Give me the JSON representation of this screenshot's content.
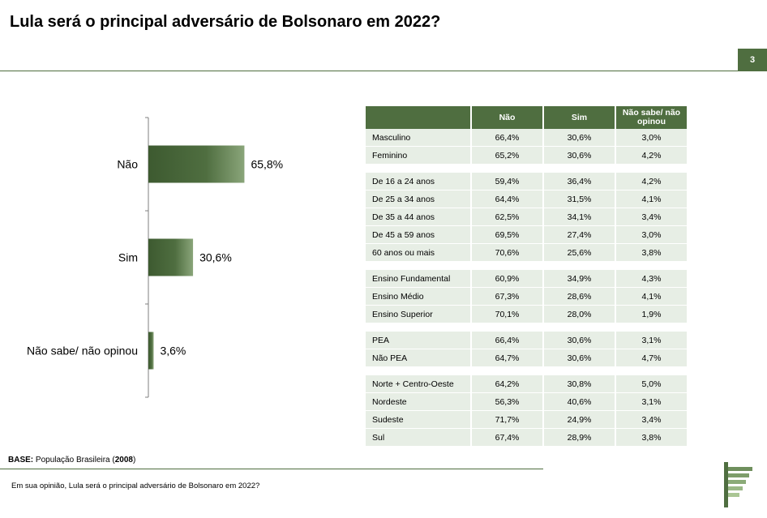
{
  "title": "Lula será o principal adversário de Bolsonaro em 2022?",
  "page_number": "3",
  "base": {
    "label": "BASE:",
    "text": " População Brasileira (",
    "n": "2008",
    "close": ")"
  },
  "question": "Em sua opinião, Lula será o principal adversário de Bolsonaro em 2022?",
  "colors": {
    "accent": "#4f6e40",
    "row_bg": "#e7eee5",
    "bar_dark": "#3d5a30",
    "bar_light": "#8aa57a"
  },
  "chart_data": [
    {
      "type": "bar",
      "orientation": "horizontal",
      "categories": [
        "Não",
        "Sim",
        "Não sabe/ não opinou"
      ],
      "values": [
        65.8,
        30.6,
        3.6
      ],
      "labels": [
        "65,8%",
        "30,6%",
        "3,6%"
      ],
      "xlim": [
        0,
        100
      ]
    },
    {
      "type": "table",
      "columns": [
        "",
        "Não",
        "Sim",
        "Não sabe/ não opinou"
      ],
      "groups": [
        [
          [
            "Masculino",
            "66,4%",
            "30,6%",
            "3,0%"
          ],
          [
            "Feminino",
            "65,2%",
            "30,6%",
            "4,2%"
          ]
        ],
        [
          [
            "De 16 a 24 anos",
            "59,4%",
            "36,4%",
            "4,2%"
          ],
          [
            "De 25 a 34 anos",
            "64,4%",
            "31,5%",
            "4,1%"
          ],
          [
            "De 35 a 44 anos",
            "62,5%",
            "34,1%",
            "3,4%"
          ],
          [
            "De 45 a 59 anos",
            "69,5%",
            "27,4%",
            "3,0%"
          ],
          [
            "60 anos ou mais",
            "70,6%",
            "25,6%",
            "3,8%"
          ]
        ],
        [
          [
            "Ensino Fundamental",
            "60,9%",
            "34,9%",
            "4,3%"
          ],
          [
            "Ensino Médio",
            "67,3%",
            "28,6%",
            "4,1%"
          ],
          [
            "Ensino Superior",
            "70,1%",
            "28,0%",
            "1,9%"
          ]
        ],
        [
          [
            " PEA",
            "66,4%",
            "30,6%",
            "3,1%"
          ],
          [
            " Não PEA",
            "64,7%",
            "30,6%",
            "4,7%"
          ]
        ],
        [
          [
            "Norte + Centro-Oeste",
            "64,2%",
            "30,8%",
            "5,0%"
          ],
          [
            "Nordeste",
            "56,3%",
            "40,6%",
            "3,1%"
          ],
          [
            "Sudeste",
            "71,7%",
            "24,9%",
            "3,4%"
          ],
          [
            "Sul",
            "67,4%",
            "28,9%",
            "3,8%"
          ]
        ]
      ]
    }
  ]
}
